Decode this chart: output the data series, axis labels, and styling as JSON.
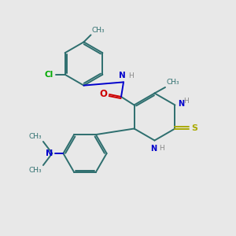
{
  "bg_color": "#e8e8e8",
  "bond_color": "#2d6e6e",
  "atom_colors": {
    "N": "#0000cc",
    "O": "#cc0000",
    "S": "#aaaa00",
    "Cl": "#00aa00",
    "H": "#888888",
    "C": "#2d6e6e"
  },
  "figsize": [
    3.0,
    3.0
  ],
  "dpi": 100,
  "xlim": [
    0,
    10
  ],
  "ylim": [
    0,
    10
  ]
}
